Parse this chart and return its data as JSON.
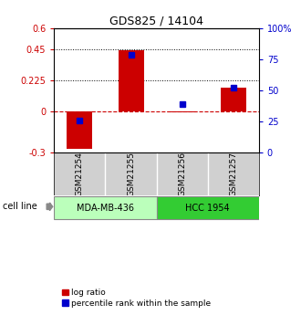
{
  "title": "GDS825 / 14104",
  "samples": [
    "GSM21254",
    "GSM21255",
    "GSM21256",
    "GSM21257"
  ],
  "log_ratio": [
    -0.27,
    0.44,
    -0.01,
    0.17
  ],
  "percentile_rank": [
    26,
    79,
    39,
    52
  ],
  "left_ylim": [
    -0.3,
    0.6
  ],
  "right_ylim": [
    0,
    100
  ],
  "left_yticks": [
    -0.3,
    0,
    0.225,
    0.45,
    0.6
  ],
  "left_yticklabels": [
    "-0.3",
    "0",
    "0.225",
    "0.45",
    "0.6"
  ],
  "right_yticks": [
    0,
    25,
    50,
    75,
    100
  ],
  "right_yticklabels": [
    "0",
    "25",
    "50",
    "75",
    "100%"
  ],
  "dotted_lines": [
    0.225,
    0.45
  ],
  "zero_line": 0,
  "bar_color": "#cc0000",
  "dot_color": "#0000cc",
  "cell_lines": [
    {
      "label": "MDA-MB-436",
      "samples": [
        0,
        1
      ],
      "color": "#bbffbb"
    },
    {
      "label": "HCC 1954",
      "samples": [
        2,
        3
      ],
      "color": "#33cc33"
    }
  ],
  "cell_line_label": "cell line",
  "legend_log_ratio": "log ratio",
  "legend_percentile": "percentile rank within the sample",
  "bar_width": 0.5,
  "sample_bg_color": "#d0d0d0",
  "plot_bg": "#ffffff"
}
